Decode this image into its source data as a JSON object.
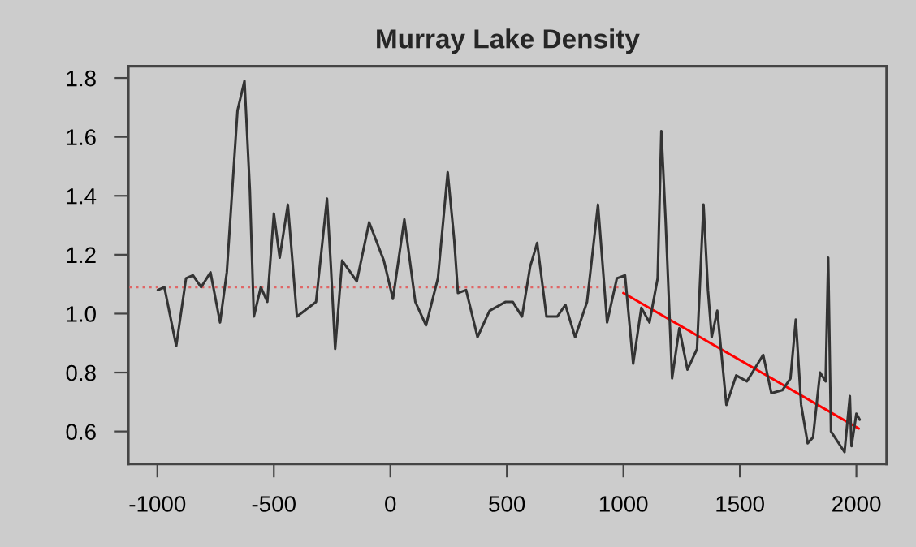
{
  "chart_data": {
    "type": "line",
    "title": "Murray Lake Density",
    "xlim": [
      -1125,
      2130
    ],
    "xticks": [
      -1000,
      -500,
      0,
      500,
      1000,
      1500,
      2000
    ],
    "ylim": [
      0.49,
      1.84
    ],
    "yticks": [
      0.6,
      0.8,
      {
        "value": 1.0,
        "label": "1.0"
      },
      1.2,
      1.4,
      1.6,
      1.8
    ],
    "grid": false,
    "legend": false,
    "series": [
      {
        "color": "#333333",
        "line_style": "solid",
        "x": [
          -998,
          -970,
          -919,
          -877,
          -847,
          -812,
          -772,
          -731,
          -702,
          -656,
          -626,
          -603,
          -586,
          -556,
          -528,
          -500,
          -475,
          -440,
          -401,
          -319,
          -272,
          -256,
          -237,
          -207,
          -144,
          -91,
          -28,
          11,
          60,
          107,
          153,
          204,
          246,
          274,
          290,
          325,
          374,
          414,
          426,
          495,
          525,
          565,
          600,
          630,
          670,
          716,
          751,
          793,
          844,
          891,
          930,
          972,
          1007,
          1042,
          1077,
          1112,
          1147,
          1163,
          1181,
          1209,
          1240,
          1275,
          1316,
          1333,
          1344,
          1363,
          1379,
          1403,
          1442,
          1484,
          1530,
          1600,
          1635,
          1682,
          1717,
          1740,
          1763,
          1791,
          1814,
          1844,
          1868,
          1879,
          1891,
          1949,
          1972,
          1979,
          2000,
          2014
        ],
        "values": [
          1.08,
          1.09,
          0.89,
          1.12,
          1.13,
          1.09,
          1.14,
          0.97,
          1.14,
          1.69,
          1.79,
          1.42,
          0.99,
          1.09,
          1.04,
          1.34,
          1.19,
          1.37,
          0.99,
          1.04,
          1.39,
          1.17,
          0.88,
          1.18,
          1.11,
          1.31,
          1.18,
          1.05,
          1.32,
          1.04,
          0.96,
          1.12,
          1.48,
          1.25,
          1.07,
          1.08,
          0.92,
          0.99,
          1.01,
          1.04,
          1.04,
          0.99,
          1.16,
          1.24,
          0.99,
          0.99,
          1.03,
          0.92,
          1.04,
          1.37,
          0.97,
          1.12,
          1.13,
          0.83,
          1.02,
          0.97,
          1.12,
          1.62,
          1.32,
          0.78,
          0.95,
          0.81,
          0.88,
          1.18,
          1.37,
          1.08,
          0.92,
          1.01,
          0.69,
          0.79,
          0.77,
          0.86,
          0.73,
          0.74,
          0.78,
          0.98,
          0.69,
          0.56,
          0.58,
          0.8,
          0.77,
          1.19,
          0.6,
          0.53,
          0.72,
          0.55,
          0.66,
          0.64
        ]
      },
      {
        "color": "#e06666",
        "line_style": "dotted",
        "x": [
          -1120,
          1000
        ],
        "values": [
          1.09,
          1.09
        ]
      },
      {
        "color": "#ff0000",
        "line_style": "solid",
        "x": [
          1000,
          2010
        ],
        "values": [
          1.07,
          0.61
        ]
      }
    ]
  }
}
